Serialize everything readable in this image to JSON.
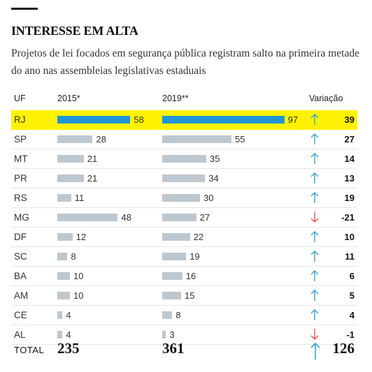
{
  "header": {
    "title": "INTERESSE EM ALTA",
    "subtitle": "Projetos de lei focados em segurança pública registram salto na primeira metade do ano nas assembleias legislativas estaduais"
  },
  "columns": {
    "uf": "UF",
    "y2015": "2015*",
    "y2019": "2019**",
    "variation": "Variação"
  },
  "colors": {
    "highlight_row": "#fff200",
    "highlight_bar": "#1f95d3",
    "bar": "#bdc7cf",
    "up_arrow": "#3aa0d8",
    "down_arrow": "#e85a4f"
  },
  "chart_data": {
    "type": "table",
    "highlighted": "RJ",
    "rows": [
      {
        "uf": "RJ",
        "v2015": 58,
        "v2019": 97,
        "var": "39",
        "dir": "up"
      },
      {
        "uf": "SP",
        "v2015": 28,
        "v2019": 55,
        "var": "27",
        "dir": "up"
      },
      {
        "uf": "MT",
        "v2015": 21,
        "v2019": 35,
        "var": "14",
        "dir": "up"
      },
      {
        "uf": "PR",
        "v2015": 21,
        "v2019": 34,
        "var": "13",
        "dir": "up"
      },
      {
        "uf": "RS",
        "v2015": 11,
        "v2019": 30,
        "var": "19",
        "dir": "up"
      },
      {
        "uf": "MG",
        "v2015": 48,
        "v2019": 27,
        "var": "-21",
        "dir": "down"
      },
      {
        "uf": "DF",
        "v2015": 12,
        "v2019": 22,
        "var": "10",
        "dir": "up"
      },
      {
        "uf": "SC",
        "v2015": 8,
        "v2019": 19,
        "var": "11",
        "dir": "up"
      },
      {
        "uf": "BA",
        "v2015": 10,
        "v2019": 16,
        "var": "6",
        "dir": "up"
      },
      {
        "uf": "AM",
        "v2015": 10,
        "v2019": 15,
        "var": "5",
        "dir": "up"
      },
      {
        "uf": "CE",
        "v2015": 4,
        "v2019": 8,
        "var": "4",
        "dir": "up"
      },
      {
        "uf": "AL",
        "v2015": 4,
        "v2019": 3,
        "var": "-1",
        "dir": "down"
      }
    ],
    "total": {
      "label": "TOTAL",
      "v2015": "235",
      "v2019": "361",
      "var": "126",
      "dir": "up"
    }
  }
}
